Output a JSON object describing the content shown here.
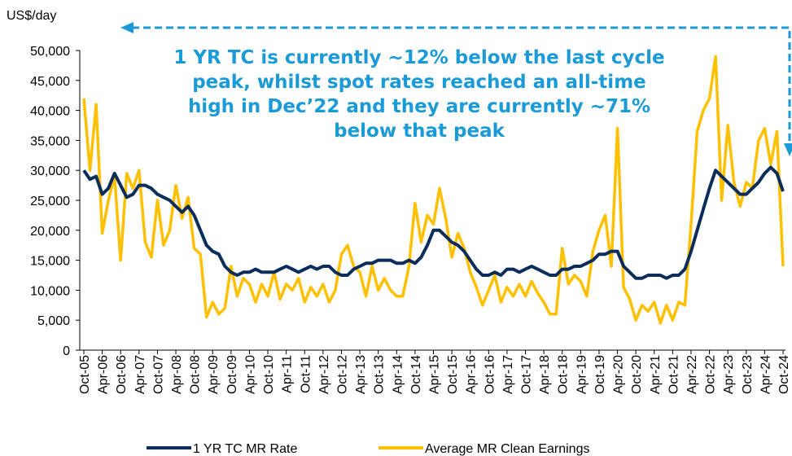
{
  "chart_data": {
    "type": "line",
    "y_label": "US$/day",
    "annotation": [
      "1 YR TC is currently ~12% below the last cycle",
      "peak, whilst spot rates reached an all-time",
      "high in Dec’22 and they are currently ~71%",
      "below that peak"
    ],
    "categories": [
      "Oct-05",
      null,
      null,
      "Apr-06",
      null,
      null,
      "Oct-06",
      null,
      null,
      "Apr-07",
      null,
      null,
      "Oct-07",
      null,
      null,
      "Apr-08",
      null,
      null,
      "Oct-08",
      null,
      null,
      "Apr-09",
      null,
      null,
      "Oct-09",
      null,
      null,
      "Apr-10",
      null,
      null,
      "Oct-10",
      null,
      null,
      "Apr-11",
      null,
      null,
      "Oct-11",
      null,
      null,
      "Apr-12",
      null,
      null,
      "Oct-12",
      null,
      null,
      "Apr-13",
      null,
      null,
      "Oct-13",
      null,
      null,
      "Apr-14",
      null,
      null,
      "Oct-14",
      null,
      null,
      "Apr-15",
      null,
      null,
      "Oct-15",
      null,
      null,
      "Apr-16",
      null,
      null,
      "Oct-16",
      null,
      null,
      "Apr-17",
      null,
      null,
      "Oct-17",
      null,
      null,
      "Apr-18",
      null,
      null,
      "Oct-18",
      null,
      null,
      "Apr-19",
      null,
      null,
      "Oct-19",
      null,
      null,
      "Apr-20",
      null,
      null,
      "Oct-20",
      null,
      null,
      "Apr-21",
      null,
      null,
      "Oct-21",
      null,
      null,
      "Apr-22",
      null,
      null,
      "Oct-22",
      null,
      null,
      "Apr-23",
      null,
      null,
      "Oct-23",
      null,
      null,
      "Apr-24",
      null,
      null,
      "Oct-24"
    ],
    "series": [
      {
        "name": "1 YR TC MR Rate",
        "color": "#0b2d5c",
        "values": [
          30000,
          28500,
          29000,
          26000,
          27000,
          29500,
          27500,
          25500,
          26000,
          27500,
          27500,
          27000,
          26000,
          25500,
          25000,
          24000,
          23000,
          24000,
          22500,
          20000,
          17500,
          16500,
          16000,
          14000,
          13000,
          12500,
          13000,
          13000,
          13500,
          13000,
          13000,
          13000,
          13500,
          14000,
          13500,
          13000,
          13500,
          14000,
          13500,
          14000,
          14000,
          13000,
          12500,
          12500,
          13500,
          14000,
          14500,
          14500,
          15000,
          15000,
          15000,
          14500,
          14500,
          15000,
          14500,
          15500,
          17500,
          20000,
          20000,
          19000,
          18000,
          17500,
          16500,
          15000,
          13500,
          12500,
          12500,
          13000,
          12500,
          13500,
          13500,
          13000,
          13500,
          14000,
          13500,
          13000,
          12500,
          12500,
          13500,
          13500,
          14000,
          14000,
          14500,
          15000,
          16000,
          16000,
          16500,
          16500,
          14000,
          13000,
          12000,
          12000,
          12500,
          12500,
          12500,
          12000,
          12500,
          12500,
          13500,
          16500,
          20000,
          23500,
          27000,
          30000,
          29000,
          28000,
          27000,
          26000,
          26000,
          27000,
          28000,
          29500,
          30500,
          29500,
          26500
        ]
      },
      {
        "name": "Average MR Clean Earnings",
        "color": "#ffc000",
        "values": [
          42000,
          30000,
          41000,
          19500,
          25000,
          29000,
          15000,
          29500,
          27000,
          30000,
          18000,
          15500,
          25000,
          17500,
          20000,
          27500,
          22000,
          25500,
          17000,
          16000,
          5500,
          8000,
          6000,
          7000,
          14000,
          9000,
          12000,
          11000,
          8000,
          11000,
          9000,
          13000,
          8500,
          11000,
          10000,
          12000,
          8000,
          10500,
          9000,
          11000,
          8000,
          10000,
          16000,
          17500,
          14000,
          13000,
          9000,
          14000,
          10000,
          12000,
          10000,
          9000,
          9000,
          14000,
          24500,
          18000,
          22500,
          21000,
          27000,
          22000,
          15500,
          19500,
          17000,
          13000,
          10500,
          7500,
          10000,
          12500,
          8000,
          10500,
          9000,
          11000,
          9000,
          11500,
          9500,
          8000,
          6000,
          6000,
          17000,
          11000,
          12500,
          11500,
          9000,
          16500,
          20000,
          22500,
          14000,
          37000,
          10500,
          8500,
          5000,
          7500,
          6500,
          8000,
          4500,
          7500,
          5000,
          8000,
          7500,
          21000,
          36500,
          40000,
          42000,
          49000,
          25000,
          37500,
          28000,
          24000,
          28000,
          27000,
          35000,
          37000,
          31000,
          36500,
          14000
        ]
      }
    ],
    "ylim": [
      0,
      50000
    ],
    "yticks": [
      0,
      {
        "value": 5000,
        "label": "5,000"
      },
      {
        "value": 10000,
        "label": "10,000"
      },
      {
        "value": 15000,
        "label": "15,000"
      },
      {
        "value": 20000,
        "label": "20,000"
      },
      {
        "value": 25000,
        "label": "25,000"
      },
      {
        "value": 30000,
        "label": "30,000"
      },
      {
        "value": 35000,
        "label": "35,000"
      },
      {
        "value": 40000,
        "label": "40,000"
      },
      {
        "value": 45000,
        "label": "45,000"
      },
      {
        "value": 50000,
        "label": "50,000"
      }
    ],
    "legend": "bottom"
  }
}
